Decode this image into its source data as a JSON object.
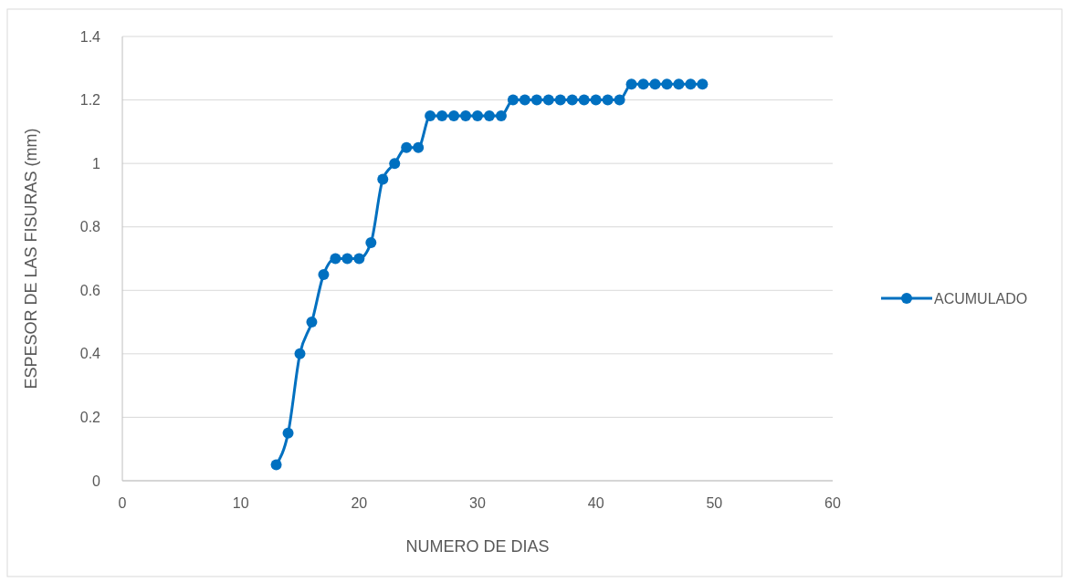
{
  "chart_data": {
    "type": "line",
    "xlabel": "NUMERO DE DIAS",
    "ylabel": "ESPESOR DE LAS FISURAS (mm)",
    "x": [
      13,
      14,
      15,
      16,
      17,
      18,
      19,
      20,
      21,
      22,
      23,
      24,
      25,
      26,
      27,
      28,
      29,
      30,
      31,
      32,
      33,
      34,
      35,
      36,
      37,
      38,
      39,
      40,
      41,
      42,
      43,
      44,
      45,
      46,
      47,
      48,
      49
    ],
    "series": [
      {
        "name": "ACUMULADO",
        "color": "#0070c0",
        "values": [
          0.05,
          0.15,
          0.4,
          0.5,
          0.65,
          0.7,
          0.7,
          0.7,
          0.75,
          0.95,
          1.0,
          1.05,
          1.05,
          1.15,
          1.15,
          1.15,
          1.15,
          1.15,
          1.15,
          1.15,
          1.2,
          1.2,
          1.2,
          1.2,
          1.2,
          1.2,
          1.2,
          1.2,
          1.2,
          1.2,
          1.25,
          1.25,
          1.25,
          1.25,
          1.25,
          1.25,
          1.25
        ]
      }
    ],
    "xlim": [
      0,
      60
    ],
    "xticks": [
      0,
      10,
      20,
      30,
      40,
      50,
      60
    ],
    "ylim": [
      0,
      1.4
    ],
    "yticks": [
      0,
      0.2,
      0.4,
      0.6,
      0.8,
      1,
      1.2,
      1.4
    ],
    "grid": "y",
    "legend": "right",
    "marker": "circle",
    "line_style": "solid"
  }
}
